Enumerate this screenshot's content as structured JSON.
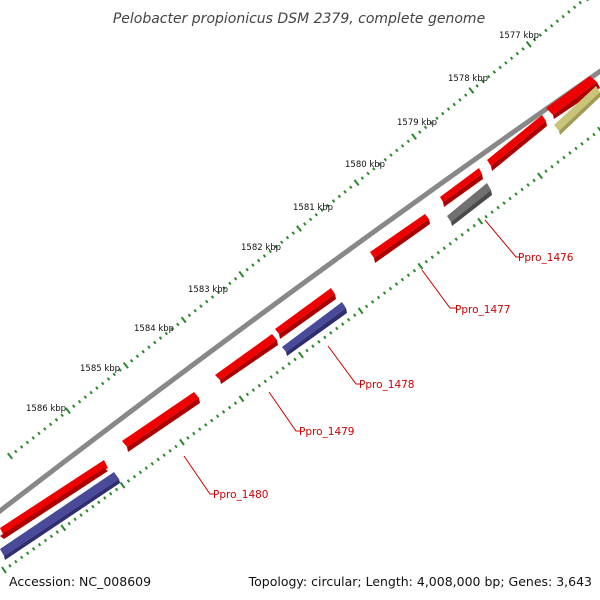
{
  "title": "Pelobacter propionicus DSM 2379, complete genome",
  "footer": {
    "accession": "Accession: NC_008609",
    "topology": "Topology: circular; Length: 4,008,000 bp; Genes: 3,643"
  },
  "scale_labels": [
    "1577 kbp",
    "1578 kbp",
    "1579 kbp",
    "1580 kbp",
    "1581 kbp",
    "1582 kbp",
    "1583 kbp",
    "1584 kbp",
    "1585 kbp",
    "1586 kbp"
  ],
  "gene_labels": [
    "Ppro_1476",
    "Ppro_1477",
    "Ppro_1478",
    "Ppro_1479",
    "Ppro_1480"
  ],
  "colors": {
    "cds_forward": "#ee0000",
    "cds_reverse": "#4a4a9a",
    "gray_feature": "#707070",
    "olive_feature": "#c8c478",
    "backbone": "#888888",
    "ticks": "#2a8a2a",
    "label": "#cc0000"
  }
}
